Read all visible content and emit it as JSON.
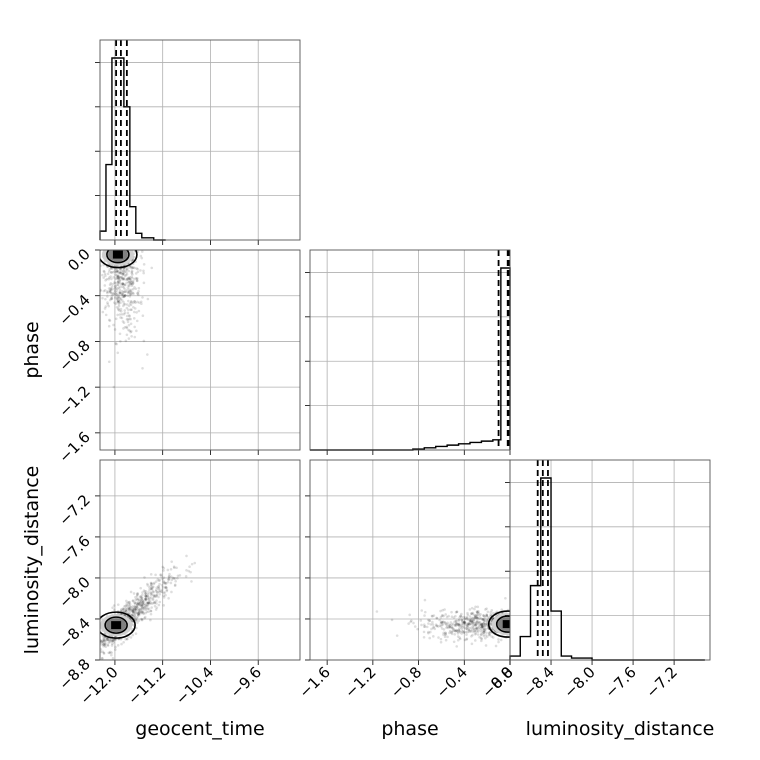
{
  "chart_data": {
    "type": "corner",
    "parameters": [
      "geocent_time",
      "phase",
      "luminosity_distance"
    ],
    "quantile_style": "dashed",
    "grid": true,
    "axes": {
      "geocent_time": {
        "label": "geocent_time",
        "range": [
          -12.25,
          -8.9
        ],
        "ticks": [
          -12.0,
          -11.2,
          -10.4,
          -9.6
        ],
        "tick_labels": [
          "−12.0",
          "−11.2",
          "−10.4",
          "−9.6"
        ]
      },
      "phase": {
        "label": "phase",
        "range": [
          -1.75,
          0.0
        ],
        "ticks": [
          -1.6,
          -1.2,
          -0.8,
          -0.4,
          0.0
        ],
        "tick_labels": [
          "−1.6",
          "−1.2",
          "−0.8",
          "−0.4",
          "0.0"
        ]
      },
      "luminosity_distance": {
        "label": "luminosity_distance",
        "range": [
          -8.8,
          -6.85
        ],
        "ticks": [
          -8.8,
          -8.4,
          -8.0,
          -7.6,
          -7.2
        ],
        "tick_labels": [
          "−8.8",
          "−8.4",
          "−8.0",
          "−7.6",
          "−7.2"
        ]
      }
    },
    "histograms": [
      {
        "parameter": "geocent_time",
        "bin_edges": [
          -12.25,
          -12.15,
          -12.05,
          -11.95,
          -11.85,
          -11.75,
          -11.65,
          -11.55,
          -11.45,
          -11.35,
          -11.25,
          -11.15
        ],
        "counts": [
          4,
          34,
          82,
          82,
          60,
          15,
          3,
          1,
          1,
          0,
          0
        ],
        "quantiles": [
          -11.98,
          -11.9,
          -11.8
        ]
      },
      {
        "parameter": "phase",
        "bin_edges": [
          -1.75,
          -1.65,
          -1.55,
          -1.45,
          -1.35,
          -1.25,
          -1.15,
          -1.05,
          -0.95,
          -0.85,
          -0.75,
          -0.65,
          -0.55,
          -0.45,
          -0.35,
          -0.25,
          -0.15,
          -0.08,
          0.0
        ],
        "counts": [
          0,
          0,
          0,
          0,
          0,
          0,
          0,
          0,
          0,
          0.2,
          0.5,
          0.8,
          1.1,
          1.4,
          1.7,
          2.0,
          2.3,
          41
        ],
        "quantiles": [
          -0.1,
          -0.02,
          0.0
        ]
      },
      {
        "parameter": "luminosity_distance",
        "bin_edges": [
          -8.8,
          -8.7,
          -8.6,
          -8.5,
          -8.4,
          -8.3,
          -8.2,
          -8.1,
          -8.0,
          -7.9,
          -7.8,
          -7.7,
          -7.6,
          -7.5,
          -7.4,
          -7.3,
          -7.2,
          -7.1,
          -7.0,
          -6.9
        ],
        "counts": [
          2,
          12,
          38,
          93,
          25,
          2,
          1,
          1,
          0,
          0,
          0,
          0,
          0,
          0,
          0,
          0,
          0,
          0,
          0
        ],
        "quantiles": [
          -8.53,
          -8.48,
          -8.43
        ]
      }
    ],
    "scatter_panels": [
      {
        "x": "geocent_time",
        "y": "phase",
        "center": [
          -11.92,
          -0.1
        ],
        "spread": [
          0.17,
          0.3
        ],
        "correlation": -0.3,
        "mode": [
          -11.95,
          -0.04
        ]
      },
      {
        "x": "geocent_time",
        "y": "luminosity_distance",
        "center": [
          -11.85,
          -8.42
        ],
        "spread": [
          0.4,
          0.22
        ],
        "correlation": 0.92,
        "mode": [
          -11.98,
          -8.46
        ]
      },
      {
        "x": "phase",
        "y": "luminosity_distance",
        "center": [
          -0.15,
          -8.45
        ],
        "spread": [
          0.3,
          0.07
        ],
        "correlation": 0.1,
        "mode": [
          -0.02,
          -8.45
        ]
      }
    ]
  }
}
